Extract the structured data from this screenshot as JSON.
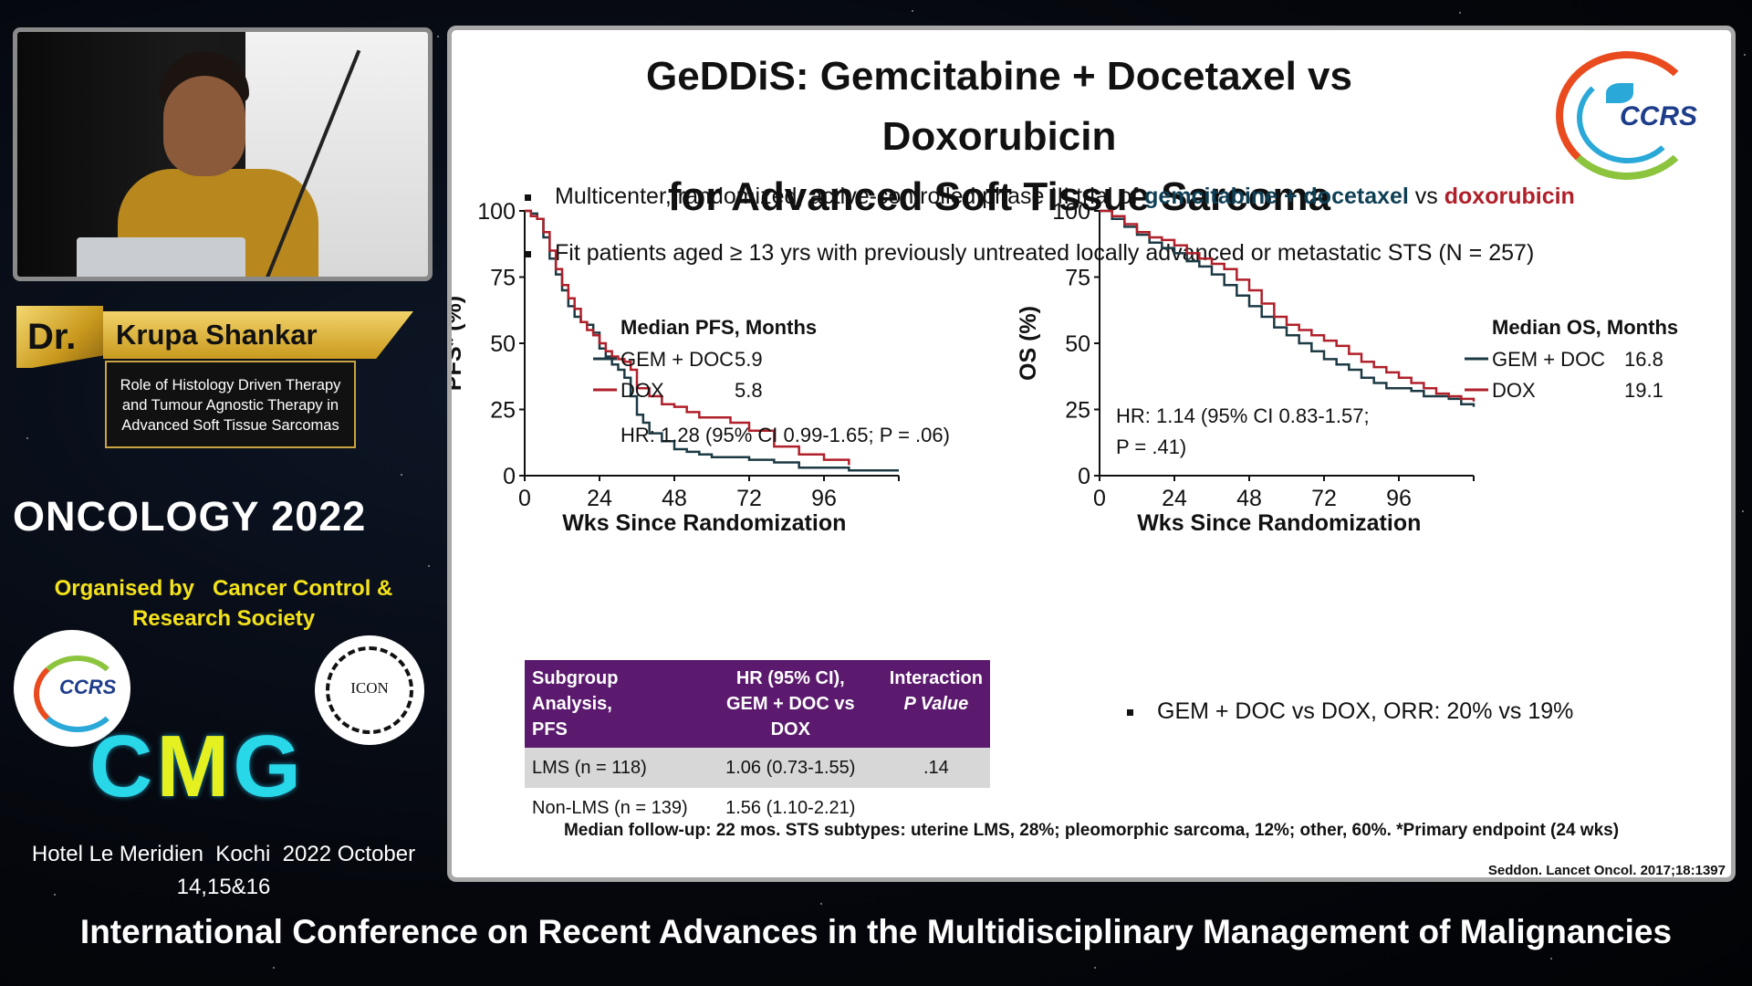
{
  "speaker": {
    "prefix": "Dr.",
    "name": "Krupa Shankar",
    "talk_title_lines": [
      "Role of Histology Driven Therapy",
      "and Tumour Agnostic Therapy in",
      "Advanced Soft Tissue Sarcomas"
    ]
  },
  "event": {
    "name": "ONCOLOGY 2022",
    "organiser_lines": [
      "Organised by   Cancer Control &",
      "Research Society"
    ],
    "logo_left_text": "CCRS",
    "logo_right_text": "ICON",
    "brand_left": "C",
    "brand_mid": "M",
    "brand_right": "G",
    "venue_lines": [
      "Hotel Le Meridien  Kochi  2022 October",
      "14,15&16"
    ],
    "conference_title": "International Conference on Recent Advances in the Multidisciplinary Management of Malignancies"
  },
  "slide": {
    "title_lines": [
      "GeDDiS: Gemcitabine + Docetaxel vs Doxorubicin",
      "for Advanced Soft Tissue Sarcoma"
    ],
    "logo_text": "CCRS",
    "bullet1": {
      "prefix": "Multicenter, randomized, active-controlled phase III trial of ",
      "highlight1": "gemcitabine + docetaxel",
      "mid": " vs ",
      "highlight2": "doxorubicin"
    },
    "bullet2": "Fit patients aged ≥ 13 yrs with previously untreated locally advanced or metastatic STS (N = 257)",
    "bullet3": "GEM + DOC vs DOX, ORR: 20% vs 19%",
    "footnote": "Median follow-up: 22 mos. STS subtypes: uterine LMS, 28%; pleomorphic sarcoma, 12%; other, 60%. *Primary endpoint (24 wks)",
    "citation": "Seddon. Lancet Oncol. 2017;18:1397",
    "table": {
      "headers": [
        "Subgroup Analysis,|PFS",
        "HR (95% CI),|GEM + DOC vs DOX",
        "Interaction|P Value"
      ],
      "rows": [
        [
          "LMS (n = 118)",
          "1.06 (0.73-1.55)",
          ".14"
        ],
        [
          "Non-LMS (n = 139)",
          "1.56 (1.10-2.21)",
          ""
        ]
      ]
    },
    "colors": {
      "gem_doc": "#1c3a44",
      "dox": "#b0202a",
      "header_purple": "#5b1a6e"
    }
  },
  "chart_data": [
    {
      "type": "line",
      "title": "Median PFS, Months",
      "xlabel": "Wks Since Randomization",
      "ylabel": "PFS* (%)",
      "xticks": [
        0,
        24,
        48,
        72,
        96
      ],
      "yticks": [
        0,
        25,
        50,
        75,
        100
      ],
      "xlim": [
        0,
        120
      ],
      "ylim": [
        0,
        100
      ],
      "annotation": "HR: 1.28 (95% CI 0.99-1.65; P = .06)",
      "series": [
        {
          "name": "GEM + DOC",
          "median": "5.9",
          "x": [
            0,
            2,
            4,
            6,
            8,
            10,
            12,
            14,
            16,
            18,
            20,
            22,
            24,
            26,
            28,
            30,
            32,
            34,
            36,
            38,
            40,
            44,
            48,
            52,
            56,
            60,
            66,
            72,
            80,
            88,
            96,
            104,
            112,
            120
          ],
          "y": [
            100,
            99,
            97,
            90,
            82,
            76,
            70,
            64,
            60,
            58,
            57,
            54,
            48,
            45,
            42,
            40,
            37,
            30,
            23,
            20,
            16,
            13,
            10,
            9,
            8,
            7,
            7,
            6,
            5,
            3,
            3,
            2,
            2,
            2
          ]
        },
        {
          "name": "DOX",
          "median": "5.8",
          "x": [
            0,
            2,
            4,
            6,
            8,
            10,
            12,
            14,
            16,
            18,
            20,
            22,
            24,
            26,
            28,
            30,
            32,
            34,
            36,
            40,
            44,
            48,
            52,
            56,
            60,
            66,
            72,
            80,
            88,
            96,
            104
          ],
          "y": [
            100,
            98,
            97,
            92,
            85,
            78,
            72,
            67,
            63,
            58,
            55,
            53,
            50,
            47,
            45,
            44,
            43,
            40,
            33,
            30,
            27,
            26,
            24,
            22,
            22,
            20,
            17,
            11,
            8,
            6,
            4
          ]
        }
      ]
    },
    {
      "type": "line",
      "title": "Median OS, Months",
      "xlabel": "Wks Since Randomization",
      "ylabel": "OS (%)",
      "xticks": [
        0,
        24,
        48,
        72,
        96
      ],
      "yticks": [
        0,
        25,
        50,
        75,
        100
      ],
      "xlim": [
        0,
        120
      ],
      "ylim": [
        0,
        100
      ],
      "annotation_lines": [
        "HR: 1.14 (95% CI 0.83-1.57;",
        "P = .41)"
      ],
      "series": [
        {
          "name": "GEM + DOC",
          "median": "16.8",
          "x": [
            0,
            4,
            8,
            12,
            16,
            20,
            24,
            28,
            32,
            36,
            40,
            44,
            48,
            52,
            56,
            60,
            64,
            68,
            72,
            76,
            80,
            84,
            88,
            92,
            96,
            100,
            104,
            108,
            112,
            116,
            120
          ],
          "y": [
            100,
            97,
            94,
            91,
            88,
            86,
            84,
            81,
            79,
            76,
            72,
            68,
            64,
            60,
            56,
            53,
            50,
            47,
            44,
            42,
            40,
            37,
            35,
            33,
            33,
            32,
            30,
            30,
            29,
            27,
            26
          ]
        },
        {
          "name": "DOX",
          "median": "19.1",
          "x": [
            0,
            4,
            8,
            12,
            16,
            20,
            24,
            28,
            32,
            36,
            40,
            44,
            48,
            52,
            56,
            60,
            64,
            68,
            72,
            76,
            80,
            84,
            88,
            92,
            96,
            100,
            104,
            108,
            112,
            116,
            120
          ],
          "y": [
            100,
            98,
            95,
            92,
            90,
            89,
            87,
            84,
            82,
            80,
            78,
            74,
            70,
            65,
            60,
            57,
            55,
            53,
            51,
            49,
            46,
            43,
            41,
            39,
            37,
            35,
            33,
            31,
            30,
            29,
            28
          ]
        }
      ]
    }
  ]
}
